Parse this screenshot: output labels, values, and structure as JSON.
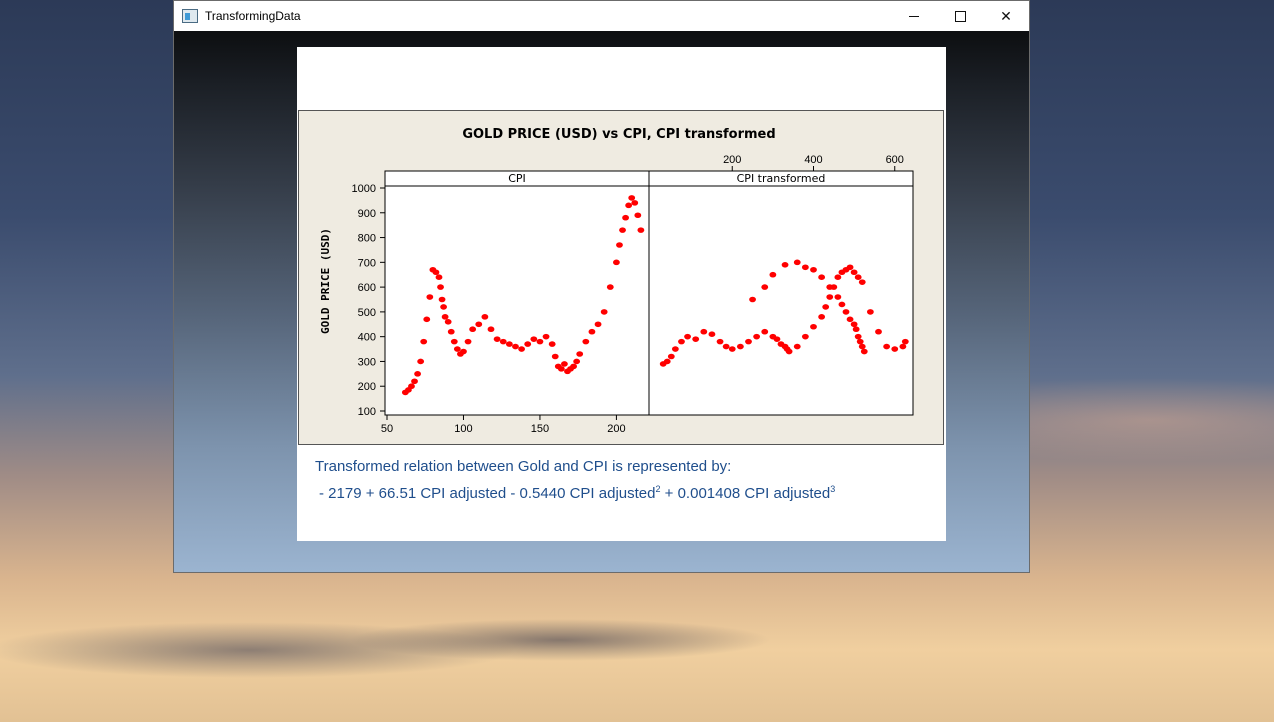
{
  "window": {
    "title": "TransformingData",
    "controls": {
      "minimize": "—",
      "close": "✕"
    }
  },
  "caption": {
    "line1": "Transformed relation between Gold and CPI is  represented by:",
    "line2_a": " - 2179 + 66.51 CPI adjusted - 0.5440 CPI adjusted",
    "exp1": "2",
    "line2_b": " + 0.001408 CPI adjusted",
    "exp2": "3"
  },
  "chart_data": {
    "type": "scatter",
    "title": "GOLD PRICE (USD) vs CPI, CPI transformed",
    "ylabel": "GOLD PRICE (USD)",
    "ylim": [
      100,
      1000
    ],
    "yticks": [
      100,
      200,
      300,
      400,
      500,
      600,
      700,
      800,
      900,
      1000
    ],
    "marker_color": "#ff0000",
    "panels": [
      {
        "label": "CPI",
        "xlim": [
          50,
          220
        ],
        "xticks": [
          50,
          100,
          150,
          200
        ],
        "x": [
          62,
          64,
          66,
          68,
          70,
          72,
          74,
          76,
          78,
          80,
          82,
          84,
          85,
          86,
          87,
          88,
          90,
          92,
          94,
          96,
          98,
          100,
          103,
          106,
          110,
          114,
          118,
          122,
          126,
          130,
          134,
          138,
          142,
          146,
          150,
          154,
          158,
          160,
          162,
          164,
          166,
          168,
          170,
          172,
          174,
          176,
          180,
          184,
          188,
          192,
          196,
          200,
          202,
          204,
          206,
          208,
          210,
          212,
          214,
          216
        ],
        "y": [
          175,
          185,
          200,
          220,
          250,
          300,
          380,
          470,
          560,
          670,
          660,
          640,
          600,
          550,
          520,
          480,
          460,
          420,
          380,
          350,
          330,
          340,
          380,
          430,
          450,
          480,
          430,
          390,
          380,
          370,
          360,
          350,
          370,
          390,
          380,
          400,
          370,
          320,
          280,
          270,
          290,
          260,
          270,
          280,
          300,
          330,
          380,
          420,
          450,
          500,
          600,
          700,
          770,
          830,
          880,
          930,
          960,
          940,
          890,
          830
        ],
        "color": "#ff0000"
      },
      {
        "label": "CPI transformed",
        "xlim": [
          0,
          640
        ],
        "xticks": [
          200,
          400,
          600
        ],
        "x": [
          30,
          40,
          50,
          60,
          75,
          90,
          110,
          130,
          150,
          170,
          185,
          200,
          220,
          240,
          260,
          280,
          300,
          310,
          320,
          330,
          335,
          340,
          360,
          380,
          400,
          420,
          430,
          440,
          450,
          460,
          470,
          480,
          490,
          500,
          510,
          520,
          540,
          560,
          580,
          600,
          620,
          626,
          250,
          280,
          300,
          330,
          360,
          380,
          400,
          420,
          440,
          460,
          470,
          480,
          490,
          500,
          505,
          510,
          515,
          520,
          525
        ],
        "y": [
          290,
          300,
          320,
          350,
          380,
          400,
          390,
          420,
          410,
          380,
          360,
          350,
          360,
          380,
          400,
          420,
          400,
          390,
          370,
          360,
          350,
          340,
          360,
          400,
          440,
          480,
          520,
          560,
          600,
          640,
          660,
          670,
          680,
          660,
          640,
          620,
          500,
          420,
          360,
          350,
          360,
          380,
          550,
          600,
          650,
          690,
          700,
          680,
          670,
          640,
          600,
          560,
          530,
          500,
          470,
          450,
          430,
          400,
          380,
          360,
          340
        ],
        "color": "#ff0000"
      }
    ]
  }
}
